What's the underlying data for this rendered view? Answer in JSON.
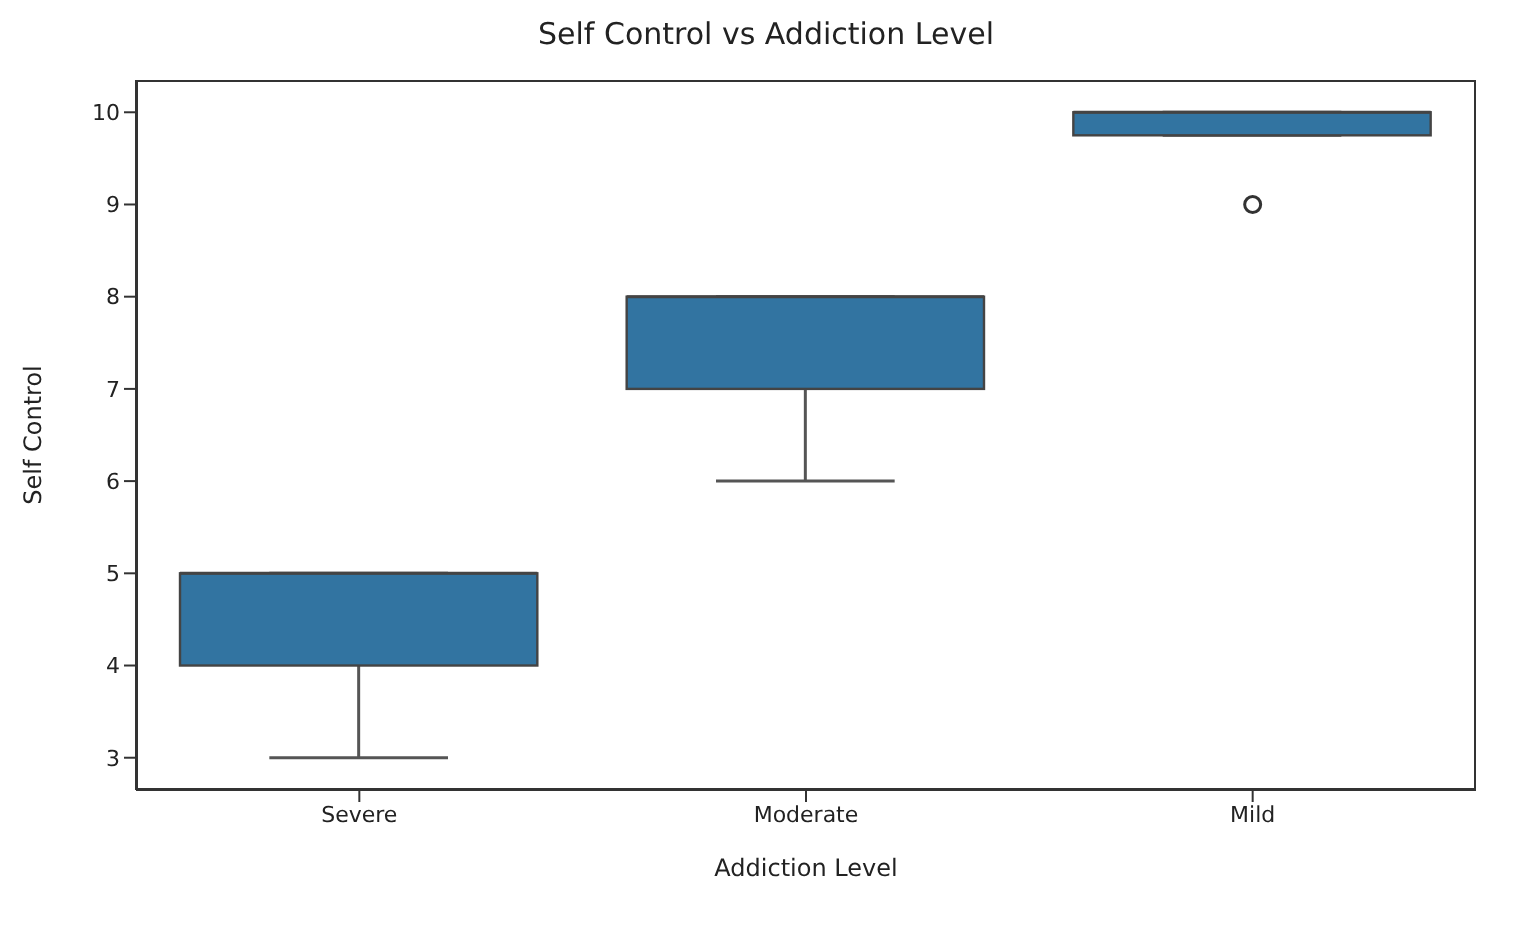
{
  "chart_data": {
    "type": "box",
    "title": "Self Control vs Addiction Level",
    "xlabel": "Addiction Level",
    "ylabel": "Self Control",
    "categories": [
      "Severe",
      "Moderate",
      "Mild"
    ],
    "color": "#3274a1",
    "boxes": [
      {
        "low": 3,
        "q1": 4,
        "median": 5,
        "q3": 5,
        "high": 5
      },
      {
        "low": 6,
        "q1": 7,
        "median": 8,
        "q3": 8,
        "high": 8
      },
      {
        "low": 9.75,
        "q1": 9.75,
        "median": 10,
        "q3": 10,
        "high": 10,
        "outliers": [
          9
        ]
      }
    ],
    "ylim": [
      2.65,
      10.35
    ],
    "yticks": [
      3,
      4,
      5,
      6,
      7,
      8,
      9,
      10
    ]
  }
}
